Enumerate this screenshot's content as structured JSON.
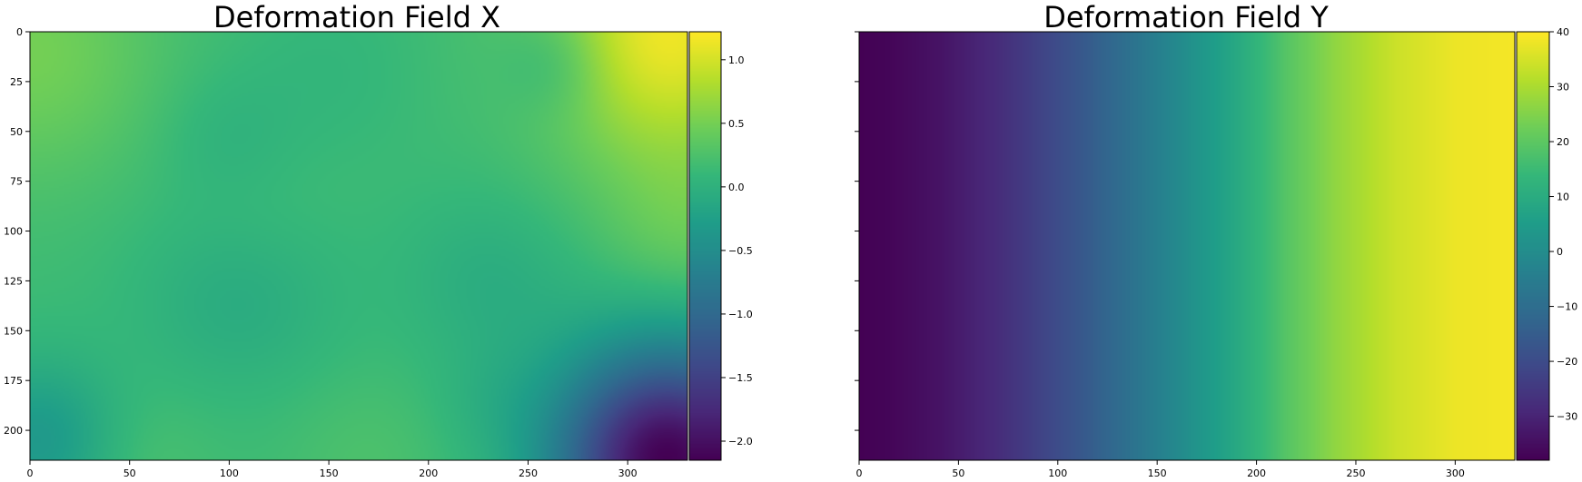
{
  "chart_data": [
    {
      "type": "heatmap",
      "title": "Deformation Field X",
      "xlim": [
        0,
        330
      ],
      "ylim": [
        215,
        0
      ],
      "xticks": [
        0,
        50,
        100,
        150,
        200,
        250,
        300
      ],
      "yticks": [
        0,
        25,
        50,
        75,
        100,
        125,
        150,
        175,
        200
      ],
      "colormap": "viridis",
      "colorbar": {
        "min": -2.15,
        "max": 1.22,
        "ticks": [
          1.0,
          0.5,
          0.0,
          -0.5,
          -1.0,
          -1.5,
          -2.0
        ],
        "tick_labels": [
          "1.0",
          "0.5",
          "0.0",
          "−0.5",
          "−1.0",
          "−1.5",
          "−2.0"
        ]
      },
      "base_value": 0.15,
      "blobs": [
        {
          "x": 320,
          "y": 0,
          "r": 45,
          "v": 1.0
        },
        {
          "x": 0,
          "y": 10,
          "r": 45,
          "v": 0.35
        },
        {
          "x": 330,
          "y": 100,
          "r": 30,
          "v": 0.25
        },
        {
          "x": 110,
          "y": 90,
          "r": 30,
          "v": 0.1
        },
        {
          "x": 320,
          "y": 215,
          "r": 40,
          "v": -2.3
        },
        {
          "x": 5,
          "y": 205,
          "r": 28,
          "v": -0.5
        },
        {
          "x": 265,
          "y": 15,
          "r": 20,
          "v": -0.3
        },
        {
          "x": 105,
          "y": 130,
          "r": 35,
          "v": -0.25
        },
        {
          "x": 230,
          "y": 125,
          "r": 30,
          "v": -0.2
        },
        {
          "x": 100,
          "y": 55,
          "r": 25,
          "v": -0.15
        },
        {
          "x": 150,
          "y": 20,
          "r": 30,
          "v": -0.08
        },
        {
          "x": 230,
          "y": 185,
          "r": 20,
          "v": -0.1
        },
        {
          "x": 170,
          "y": 215,
          "r": 30,
          "v": 0.1
        },
        {
          "x": 55,
          "y": 215,
          "r": 25,
          "v": 0.1
        }
      ]
    },
    {
      "type": "heatmap",
      "title": "Deformation Field Y",
      "xlim": [
        0,
        330
      ],
      "ylim": [
        215,
        0
      ],
      "xticks": [
        0,
        50,
        100,
        150,
        200,
        250,
        300
      ],
      "yticks": [
        0,
        25,
        50,
        75,
        100,
        125,
        150,
        175,
        200
      ],
      "show_ytick_labels": false,
      "colormap": "viridis",
      "colorbar": {
        "min": -38,
        "max": 40,
        "ticks": [
          40,
          30,
          20,
          10,
          0,
          -10,
          -20,
          -30
        ],
        "tick_labels": [
          "40",
          "30",
          "20",
          "10",
          "0",
          "−10",
          "−20",
          "−30"
        ]
      },
      "gradient_x": [
        0,
        15,
        40,
        70,
        100,
        130,
        160,
        190,
        215,
        240,
        270,
        300,
        330
      ],
      "gradient_v": [
        -38,
        -37,
        -34,
        -28,
        -20,
        -11,
        -1,
        9,
        19,
        27,
        34,
        38,
        39
      ]
    }
  ]
}
